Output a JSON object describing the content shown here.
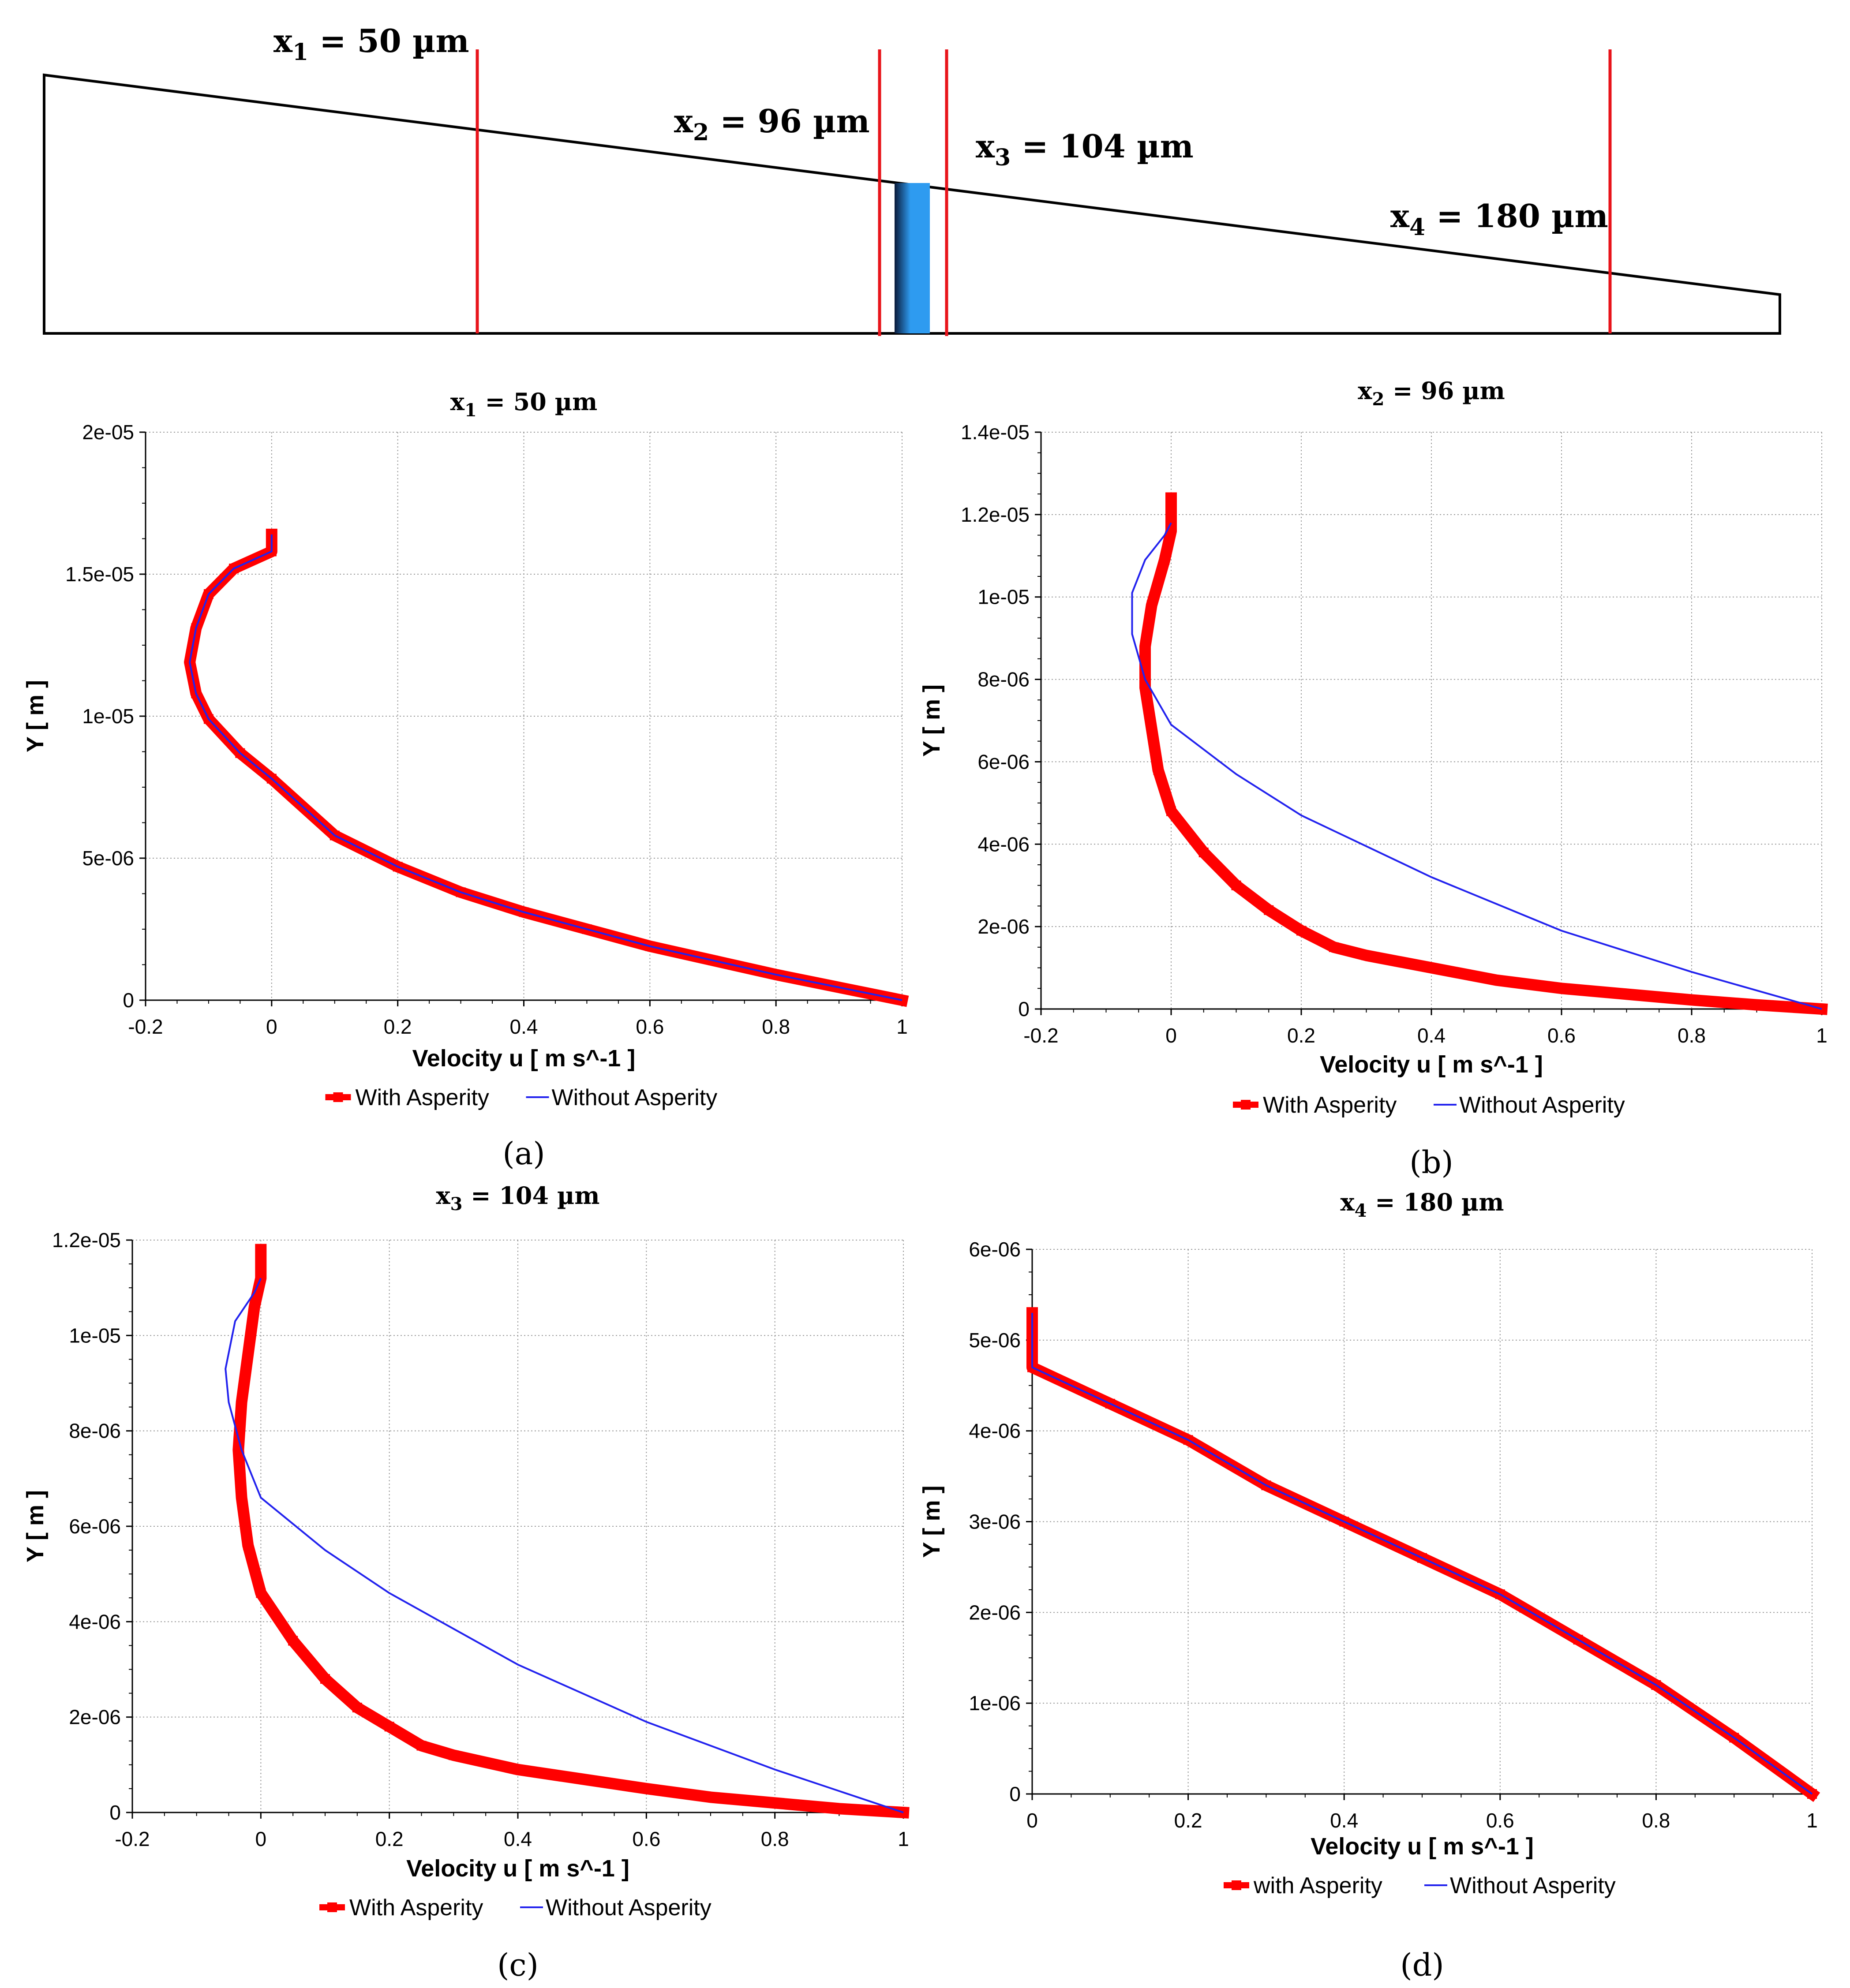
{
  "schematic": {
    "labels": [
      {
        "main": "x",
        "sub": "1",
        "rest": " = 50 µm"
      },
      {
        "main": "x",
        "sub": "2",
        "rest": " = 96 µm"
      },
      {
        "main": "x",
        "sub": "3",
        "rest": " = 104 µm"
      },
      {
        "main": "x",
        "sub": "4",
        "rest": " = 180 µm"
      }
    ],
    "colors": {
      "cut_line": "#e8141b",
      "asperity_dark": "#0a1a3a",
      "asperity_light": "#2e9bf0"
    }
  },
  "chart_data": [
    {
      "type": "line",
      "panel": "(a)",
      "title": {
        "main": "x",
        "sub": "1",
        "rest": " = 50 µm"
      },
      "xlabel": "Velocity u [ m s^-1 ]",
      "ylabel": "Y [ m ]",
      "xlim": [
        -0.2,
        1
      ],
      "ylim": [
        0,
        2e-05
      ],
      "xticks": [
        -0.2,
        0,
        0.2,
        0.4,
        0.6,
        0.8,
        1
      ],
      "xtick_labels": [
        "-0.2",
        "0",
        "0.2",
        "0.4",
        "0.6",
        "0.8",
        "1"
      ],
      "yticks": [
        0,
        5e-06,
        1e-05,
        1.5e-05,
        2e-05
      ],
      "ytick_labels": [
        "0",
        "5e-06",
        "1e-05",
        "1.5e-05",
        "2e-05"
      ],
      "legend": {
        "position": "bottom-center",
        "entries": [
          "With Asperity",
          "Without Asperity"
        ]
      },
      "series": [
        {
          "name": "With Asperity",
          "color": "#ff0000",
          "style": "thick-marker",
          "x": [
            1,
            0.9,
            0.8,
            0.7,
            0.6,
            0.5,
            0.4,
            0.3,
            0.2,
            0.1,
            0.0,
            -0.05,
            -0.1,
            -0.12,
            -0.13,
            -0.12,
            -0.1,
            -0.06,
            0.0,
            0.0
          ],
          "y": [
            0,
            4.5e-07,
            9e-07,
            1.4e-06,
            1.9e-06,
            2.5e-06,
            3.1e-06,
            3.8e-06,
            4.7e-06,
            5.8e-06,
            7.8e-06,
            8.7e-06,
            9.9e-06,
            1.08e-05,
            1.19e-05,
            1.31e-05,
            1.43e-05,
            1.52e-05,
            1.58e-05,
            1.64e-05
          ]
        },
        {
          "name": "Without Asperity",
          "color": "#2222ee",
          "style": "thin",
          "x": [
            1,
            0.9,
            0.8,
            0.7,
            0.6,
            0.5,
            0.4,
            0.3,
            0.2,
            0.1,
            0.0,
            -0.05,
            -0.1,
            -0.12,
            -0.13,
            -0.12,
            -0.1,
            -0.06,
            0.0,
            0.0
          ],
          "y": [
            0,
            4.5e-07,
            9e-07,
            1.4e-06,
            1.9e-06,
            2.5e-06,
            3.1e-06,
            3.8e-06,
            4.7e-06,
            5.8e-06,
            7.8e-06,
            8.7e-06,
            9.9e-06,
            1.08e-05,
            1.19e-05,
            1.31e-05,
            1.43e-05,
            1.52e-05,
            1.58e-05,
            1.64e-05
          ]
        }
      ]
    },
    {
      "type": "line",
      "panel": "(b)",
      "title": {
        "main": "x",
        "sub": "2",
        "rest": " = 96 µm"
      },
      "xlabel": "Velocity u [ m s^-1 ]",
      "ylabel": "Y [ m ]",
      "xlim": [
        -0.2,
        1
      ],
      "ylim": [
        0,
        1.4e-05
      ],
      "xticks": [
        -0.2,
        0,
        0.2,
        0.4,
        0.6,
        0.8,
        1
      ],
      "xtick_labels": [
        "-0.2",
        "0",
        "0.2",
        "0.4",
        "0.6",
        "0.8",
        "1"
      ],
      "yticks": [
        0,
        2e-06,
        4e-06,
        6e-06,
        8e-06,
        1e-05,
        1.2e-05,
        1.4e-05
      ],
      "ytick_labels": [
        "0",
        "2e-06",
        "4e-06",
        "6e-06",
        "8e-06",
        "1e-05",
        "1.2e-05",
        "1.4e-05"
      ],
      "legend": {
        "position": "bottom-center",
        "entries": [
          "With Asperity",
          "Without Asperity"
        ]
      },
      "series": [
        {
          "name": "With Asperity",
          "color": "#ff0000",
          "style": "thick-marker",
          "x": [
            1,
            0.9,
            0.8,
            0.7,
            0.6,
            0.5,
            0.4,
            0.3,
            0.25,
            0.2,
            0.15,
            0.1,
            0.05,
            0.0,
            -0.02,
            -0.03,
            -0.04,
            -0.04,
            -0.03,
            -0.01,
            0.0,
            0.0
          ],
          "y": [
            0,
            1e-07,
            2.2e-07,
            3.6e-07,
            5e-07,
            7e-07,
            1e-06,
            1.3e-06,
            1.5e-06,
            1.9e-06,
            2.4e-06,
            3e-06,
            3.8e-06,
            4.8e-06,
            5.8e-06,
            6.8e-06,
            7.8e-06,
            8.8e-06,
            9.8e-06,
            1.09e-05,
            1.16e-05,
            1.24e-05
          ]
        },
        {
          "name": "Without Asperity",
          "color": "#2222ee",
          "style": "thin",
          "x": [
            1,
            0.8,
            0.6,
            0.4,
            0.2,
            0.1,
            0.0,
            -0.04,
            -0.06,
            -0.06,
            -0.04,
            -0.01,
            0.0
          ],
          "y": [
            0,
            9e-07,
            1.9e-06,
            3.2e-06,
            4.7e-06,
            5.7e-06,
            6.9e-06,
            8e-06,
            9.1e-06,
            1.01e-05,
            1.09e-05,
            1.15e-05,
            1.18e-05
          ]
        }
      ]
    },
    {
      "type": "line",
      "panel": "(c)",
      "title": {
        "main": "x",
        "sub": "3",
        "rest": " = 104 µm"
      },
      "xlabel": "Velocity u [ m s^-1 ]",
      "ylabel": "Y [ m ]",
      "xlim": [
        -0.2,
        1
      ],
      "ylim": [
        0,
        1.2e-05
      ],
      "xticks": [
        -0.2,
        0,
        0.2,
        0.4,
        0.6,
        0.8,
        1
      ],
      "xtick_labels": [
        "-0.2",
        "0",
        "0.2",
        "0.4",
        "0.6",
        "0.8",
        "1"
      ],
      "yticks": [
        0,
        2e-06,
        4e-06,
        6e-06,
        8e-06,
        1e-05,
        1.2e-05
      ],
      "ytick_labels": [
        "0",
        "2e-06",
        "4e-06",
        "6e-06",
        "8e-06",
        "1e-05",
        "1.2e-05"
      ],
      "legend": {
        "position": "bottom-center",
        "entries": [
          "With Asperity",
          "Without Asperity"
        ]
      },
      "series": [
        {
          "name": "With Asperity",
          "color": "#ff0000",
          "style": "thick-marker",
          "x": [
            1,
            0.9,
            0.8,
            0.7,
            0.6,
            0.5,
            0.4,
            0.3,
            0.25,
            0.2,
            0.15,
            0.1,
            0.05,
            0.0,
            -0.02,
            -0.03,
            -0.035,
            -0.03,
            -0.02,
            -0.01,
            0.0,
            0.0
          ],
          "y": [
            0,
            8e-08,
            2e-07,
            3.2e-07,
            5e-07,
            7e-07,
            9e-07,
            1.2e-06,
            1.4e-06,
            1.8e-06,
            2.2e-06,
            2.8e-06,
            3.6e-06,
            4.6e-06,
            5.6e-06,
            6.6e-06,
            7.6e-06,
            8.6e-06,
            9.6e-06,
            1.06e-05,
            1.12e-05,
            1.18e-05
          ]
        },
        {
          "name": "Without Asperity",
          "color": "#2222ee",
          "style": "thin",
          "x": [
            1,
            0.8,
            0.6,
            0.4,
            0.2,
            0.1,
            0.0,
            -0.03,
            -0.05,
            -0.055,
            -0.04,
            -0.01,
            0.0
          ],
          "y": [
            0,
            9e-07,
            1.9e-06,
            3.1e-06,
            4.6e-06,
            5.5e-06,
            6.6e-06,
            7.6e-06,
            8.6e-06,
            9.3e-06,
            1.03e-05,
            1.09e-05,
            1.12e-05
          ]
        }
      ]
    },
    {
      "type": "line",
      "panel": "(d)",
      "title": {
        "main": "x",
        "sub": "4",
        "rest": " = 180 µm"
      },
      "xlabel": "Velocity u [ m s^-1 ]",
      "ylabel": "Y [ m ]",
      "xlim": [
        0,
        1
      ],
      "ylim": [
        0,
        6e-06
      ],
      "xticks": [
        0,
        0.2,
        0.4,
        0.6,
        0.8,
        1
      ],
      "xtick_labels": [
        "0",
        "0.2",
        "0.4",
        "0.6",
        "0.8",
        "1"
      ],
      "yticks": [
        0,
        1e-06,
        2e-06,
        3e-06,
        4e-06,
        5e-06,
        6e-06
      ],
      "ytick_labels": [
        "0",
        "1e-06",
        "2e-06",
        "3e-06",
        "4e-06",
        "5e-06",
        "6e-06"
      ],
      "legend": {
        "position": "bottom-center",
        "entries": [
          "with Asperity",
          "Without Asperity"
        ]
      },
      "series": [
        {
          "name": "with Asperity",
          "color": "#ff0000",
          "style": "thick-marker",
          "x": [
            1,
            0.9,
            0.8,
            0.7,
            0.6,
            0.5,
            0.4,
            0.3,
            0.2,
            0.1,
            0.0,
            0.0
          ],
          "y": [
            0,
            6.2e-07,
            1.2e-06,
            1.7e-06,
            2.2e-06,
            2.6e-06,
            3e-06,
            3.4e-06,
            3.9e-06,
            4.3e-06,
            4.7e-06,
            5.3e-06
          ]
        },
        {
          "name": "Without Asperity",
          "color": "#2222ee",
          "style": "thin",
          "x": [
            1,
            0.9,
            0.8,
            0.7,
            0.6,
            0.5,
            0.4,
            0.3,
            0.2,
            0.1,
            0.0,
            0.0
          ],
          "y": [
            0,
            6.2e-07,
            1.2e-06,
            1.7e-06,
            2.2e-06,
            2.6e-06,
            3e-06,
            3.4e-06,
            3.9e-06,
            4.3e-06,
            4.7e-06,
            5.3e-06
          ]
        }
      ]
    }
  ]
}
